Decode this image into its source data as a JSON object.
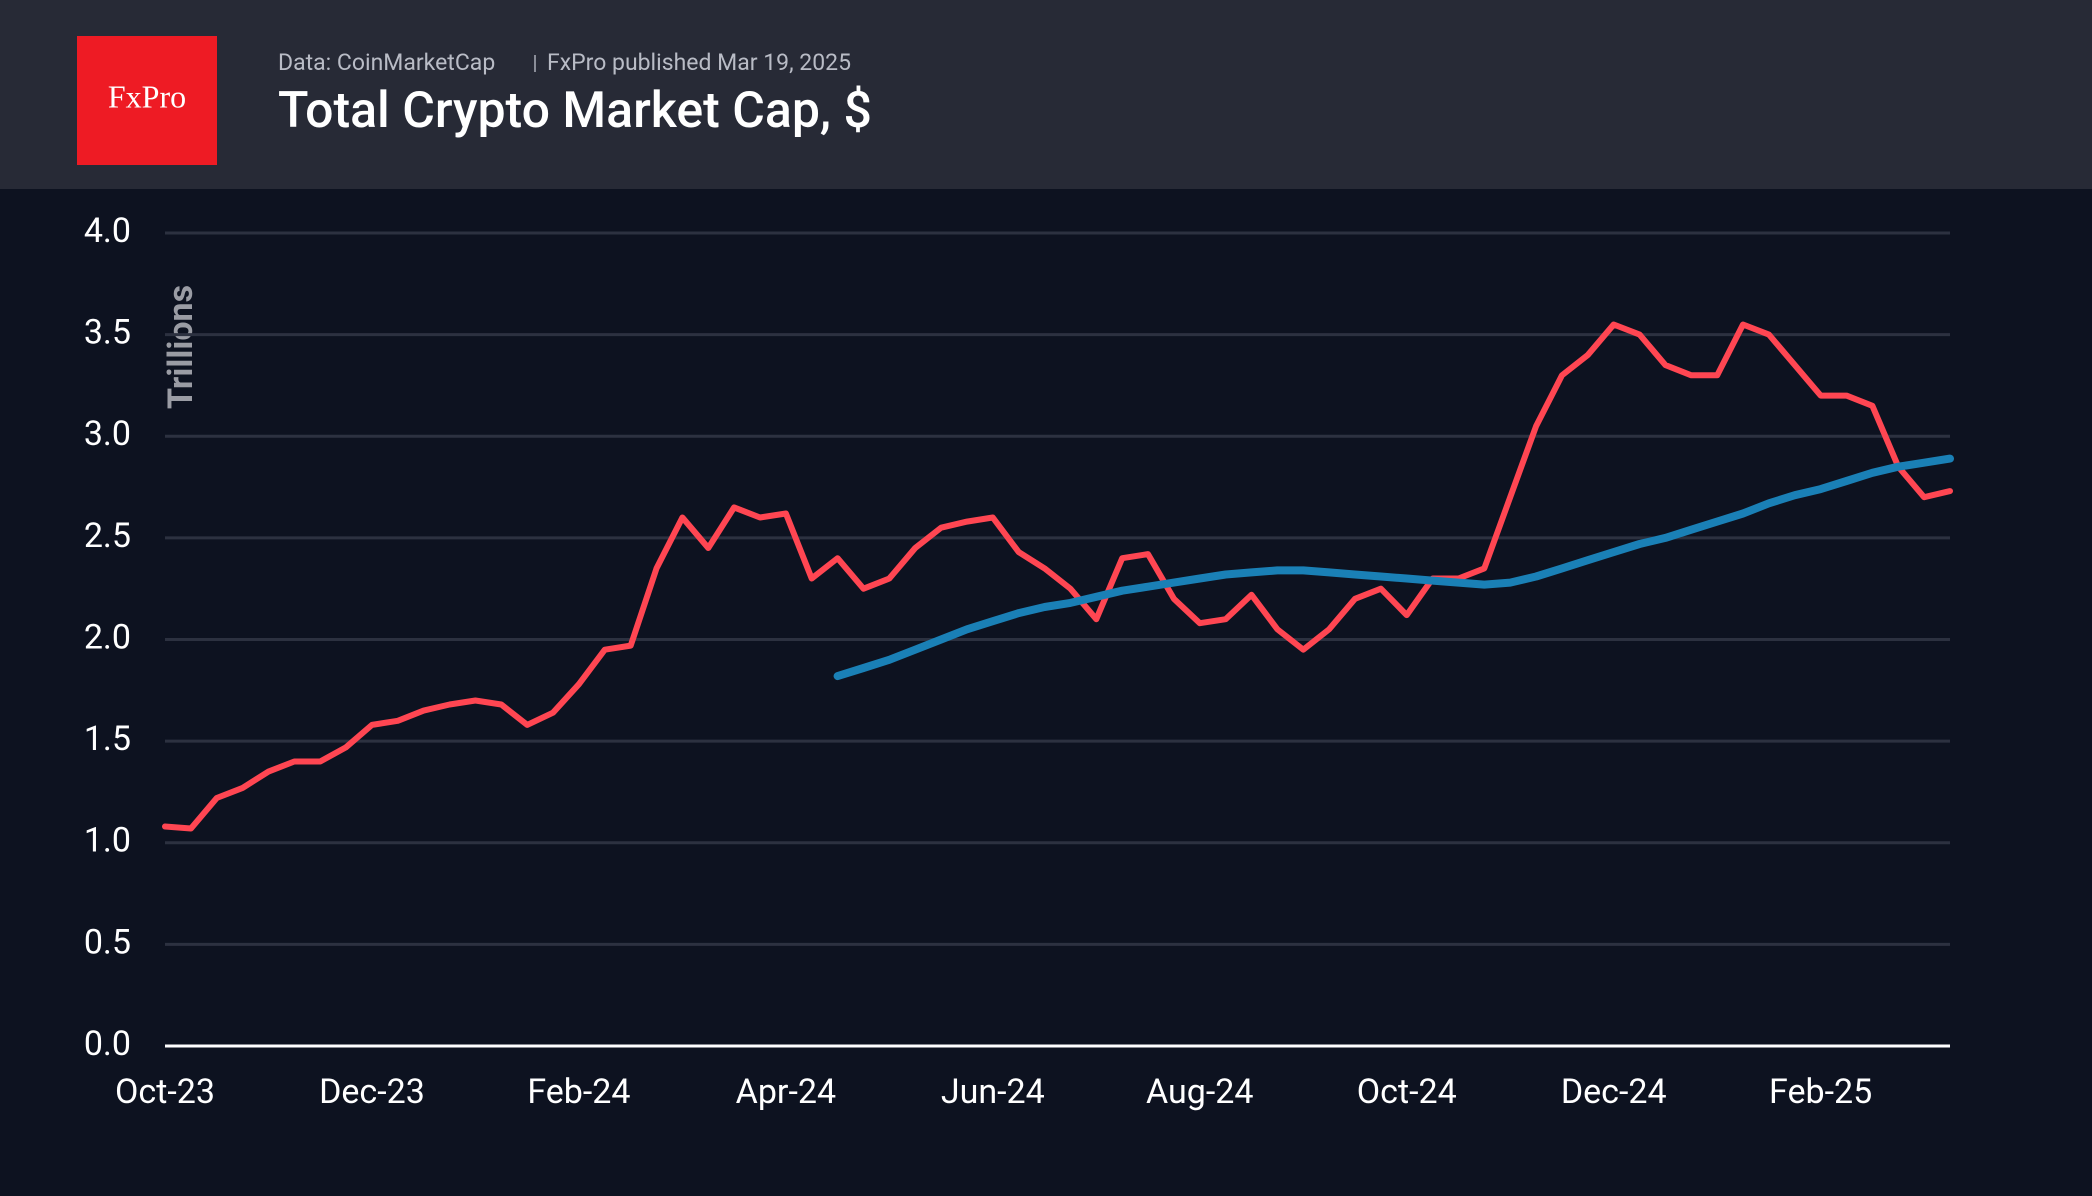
{
  "header": {
    "logo": "FxPro",
    "source": "Data: CoinMarketCap",
    "published": "FxPro published Mar 19, 2025"
  },
  "chart_data": {
    "type": "line",
    "title": "Total Crypto Market Cap, $",
    "y_label": "Trillions",
    "categories": [
      "Oct-23",
      null,
      null,
      null,
      null,
      null,
      null,
      null,
      "Dec-23",
      null,
      null,
      null,
      null,
      null,
      null,
      null,
      "Feb-24",
      null,
      null,
      null,
      null,
      null,
      null,
      null,
      "Apr-24",
      null,
      null,
      null,
      null,
      null,
      null,
      null,
      "Jun-24",
      null,
      null,
      null,
      null,
      null,
      null,
      null,
      "Aug-24",
      null,
      null,
      null,
      null,
      null,
      null,
      null,
      "Oct-24",
      null,
      null,
      null,
      null,
      null,
      null,
      null,
      "Dec-24",
      null,
      null,
      null,
      null,
      null,
      null,
      null,
      "Feb-25",
      null,
      null,
      null,
      null,
      null
    ],
    "series": [
      {
        "color": "#ff4652",
        "values": [
          1.08,
          1.07,
          1.22,
          1.27,
          1.35,
          1.4,
          1.4,
          1.47,
          1.58,
          1.6,
          1.65,
          1.68,
          1.7,
          1.68,
          1.58,
          1.64,
          1.78,
          1.95,
          1.97,
          2.35,
          2.6,
          2.45,
          2.65,
          2.6,
          2.62,
          2.3,
          2.4,
          2.25,
          2.3,
          2.45,
          2.55,
          2.58,
          2.6,
          2.43,
          2.35,
          2.25,
          2.1,
          2.4,
          2.42,
          2.2,
          2.08,
          2.1,
          2.22,
          2.05,
          1.95,
          2.05,
          2.2,
          2.25,
          2.12,
          2.3,
          2.3,
          2.35,
          2.7,
          3.05,
          3.3,
          3.4,
          3.55,
          3.5,
          3.35,
          3.3,
          3.3,
          3.55,
          3.5,
          3.35,
          3.2,
          3.2,
          3.15,
          2.85,
          2.7,
          2.73
        ]
      },
      {
        "color": "#1a80b6",
        "values": [
          null,
          null,
          null,
          null,
          null,
          null,
          null,
          null,
          null,
          null,
          null,
          null,
          null,
          null,
          null,
          null,
          null,
          null,
          null,
          null,
          null,
          null,
          null,
          null,
          null,
          null,
          1.82,
          1.86,
          1.9,
          1.95,
          2.0,
          2.05,
          2.09,
          2.13,
          2.16,
          2.18,
          2.21,
          2.24,
          2.26,
          2.28,
          2.3,
          2.32,
          2.33,
          2.34,
          2.34,
          2.33,
          2.32,
          2.31,
          2.3,
          2.29,
          2.28,
          2.27,
          2.28,
          2.31,
          2.35,
          2.39,
          2.43,
          2.47,
          2.5,
          2.54,
          2.58,
          2.62,
          2.67,
          2.71,
          2.74,
          2.78,
          2.82,
          2.85,
          2.87,
          2.89
        ]
      }
    ],
    "ylim": [
      0,
      4
    ],
    "yticks": [
      {
        "value": 0,
        "label": "0.0"
      },
      0.5,
      {
        "value": 1,
        "label": "1.0"
      },
      1.5,
      {
        "value": 2,
        "label": "2.0"
      },
      2.5,
      {
        "value": 3,
        "label": "3.0"
      },
      3.5,
      {
        "value": 4,
        "label": "4.0"
      }
    ],
    "grid": true
  }
}
